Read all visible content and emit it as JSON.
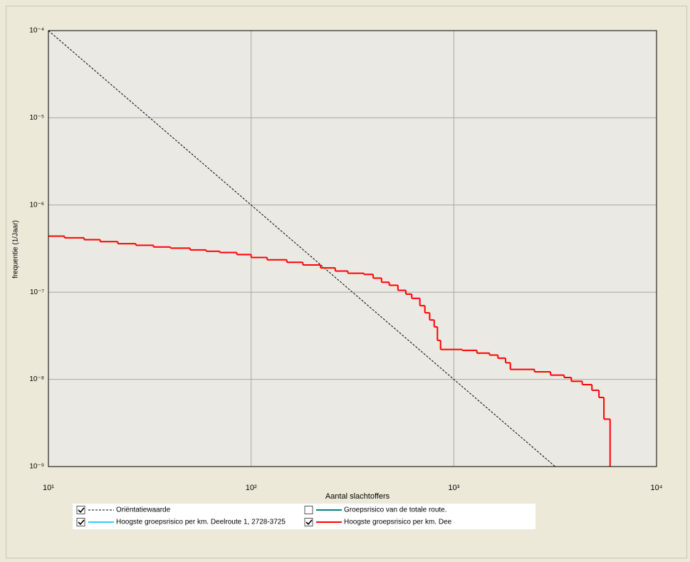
{
  "chart_data": {
    "type": "line",
    "step": true,
    "xlabel": "Aantal slachtoffers",
    "ylabel": "frequentie (1/Jaar)",
    "xscale": "log",
    "yscale": "log",
    "grid": true,
    "xlim": [
      10,
      10000
    ],
    "xticks": [
      {
        "value": 10,
        "label": "10¹"
      },
      {
        "value": 100,
        "label": "10²"
      },
      {
        "value": 1000,
        "label": "10³"
      },
      {
        "value": 10000,
        "label": "10⁴"
      }
    ],
    "ylim": [
      1e-09,
      0.0001
    ],
    "yticks": [
      {
        "value": 1e-09,
        "label": "10⁻⁹"
      },
      {
        "value": 1e-08,
        "label": "10⁻⁸"
      },
      {
        "value": 1e-07,
        "label": "10⁻⁷"
      },
      {
        "value": 1e-06,
        "label": "10⁻⁶"
      },
      {
        "value": 1e-05,
        "label": "10⁻⁵"
      },
      {
        "value": 0.0001,
        "label": "10⁻⁴"
      }
    ],
    "series": [
      {
        "name": "Oriëntatiewaarde",
        "color": "#000000",
        "dashed": true,
        "checked": true,
        "step": false,
        "x": [
          10,
          3162
        ],
        "values": [
          0.0001,
          1e-09
        ]
      },
      {
        "name": "Groepsrisico van de totale route.",
        "color": "#008080",
        "checked": false,
        "x": [],
        "values": []
      },
      {
        "name": "Hoogste groepsrisico per km. Deelroute 1, 2728-3725",
        "color": "#33ccff",
        "checked": true,
        "x": [],
        "values": []
      },
      {
        "name": "Hoogste groepsrisico per km. Dee",
        "color": "#ff0000",
        "checked": true,
        "step": true,
        "x": [
          10,
          12,
          15,
          18,
          22,
          27,
          33,
          40,
          50,
          60,
          70,
          85,
          100,
          120,
          150,
          180,
          220,
          260,
          300,
          360,
          400,
          440,
          480,
          530,
          580,
          620,
          680,
          720,
          760,
          800,
          830,
          860,
          1100,
          1300,
          1500,
          1650,
          1800,
          1900,
          2500,
          3000,
          3500,
          3800,
          4300,
          4800,
          5200,
          5500,
          5900
        ],
        "values": [
          4.4e-07,
          4.2e-07,
          4e-07,
          3.8e-07,
          3.6e-07,
          3.45e-07,
          3.3e-07,
          3.2e-07,
          3.05e-07,
          2.95e-07,
          2.85e-07,
          2.7e-07,
          2.5e-07,
          2.35e-07,
          2.2e-07,
          2.05e-07,
          1.9e-07,
          1.75e-07,
          1.65e-07,
          1.6e-07,
          1.45e-07,
          1.3e-07,
          1.2e-07,
          1.05e-07,
          9.5e-08,
          8.5e-08,
          7e-08,
          5.8e-08,
          4.8e-08,
          4e-08,
          2.8e-08,
          2.2e-08,
          2.15e-08,
          2e-08,
          1.9e-08,
          1.75e-08,
          1.55e-08,
          1.3e-08,
          1.22e-08,
          1.12e-08,
          1.05e-08,
          9.5e-09,
          8.7e-09,
          7.5e-09,
          6.2e-09,
          3.5e-09,
          1e-09
        ]
      }
    ]
  }
}
